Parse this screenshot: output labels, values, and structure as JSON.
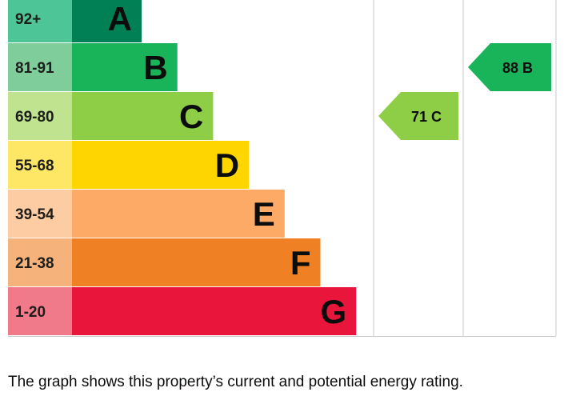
{
  "chart_data": {
    "type": "bar",
    "bands": [
      {
        "letter": "A",
        "range": "92+",
        "color": "#008054",
        "range_color": "#4dc597"
      },
      {
        "letter": "B",
        "range": "81-91",
        "color": "#19b459",
        "range_color": "#7fcd9b"
      },
      {
        "letter": "C",
        "range": "69-80",
        "color": "#8dce46",
        "range_color": "#bfe38f"
      },
      {
        "letter": "D",
        "range": "55-68",
        "color": "#ffd500",
        "range_color": "#ffe766"
      },
      {
        "letter": "E",
        "range": "39-54",
        "color": "#fcaa65",
        "range_color": "#fdcca2"
      },
      {
        "letter": "F",
        "range": "21-38",
        "color": "#ef8023",
        "range_color": "#f5b27a"
      },
      {
        "letter": "G",
        "range": "1-20",
        "color": "#e9153b",
        "range_color": "#f07a8a"
      }
    ],
    "current": {
      "score": 71,
      "band": "C",
      "label": "71 C",
      "color": "#8dce46"
    },
    "potential": {
      "score": 88,
      "band": "B",
      "label": "88 B",
      "color": "#19b459"
    },
    "grid": true
  },
  "caption": "The graph shows this property’s current and potential energy rating."
}
